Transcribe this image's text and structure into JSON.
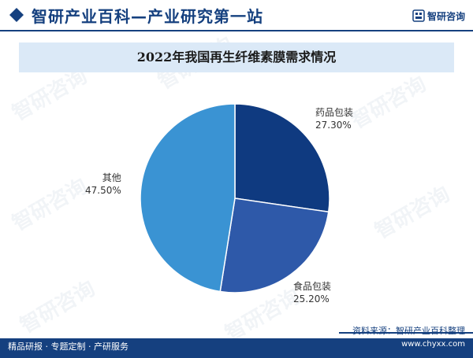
{
  "header": {
    "title": "智研产业百科—产业研究第一站",
    "brand": "智研咨询",
    "brand_icon": "zhiyan-logo-icon",
    "diamond_icon": "diamond-icon"
  },
  "watermark_text": "智研咨询",
  "chart_data": {
    "type": "pie",
    "title": "2022年我国再生纤维素膜需求情况",
    "slices": [
      {
        "label": "药品包装",
        "value": 27.3,
        "display": "27.30%",
        "color": "#0f3a80"
      },
      {
        "label": "食品包装",
        "value": 25.2,
        "display": "25.20%",
        "color": "#2e59a9"
      },
      {
        "label": "其他",
        "value": 47.5,
        "display": "47.50%",
        "color": "#3a93d3"
      }
    ],
    "start": "12 o'clock",
    "direction": "clockwise",
    "legend": "none"
  },
  "footer": {
    "tagline": "精品研报 · 专题定制 · 产研服务",
    "source": "资料来源：智研产业百科整理",
    "url": "www.chyxx.com"
  },
  "colors": {
    "brand_dark": "#15407f",
    "title_band": "#dbe9f7"
  }
}
